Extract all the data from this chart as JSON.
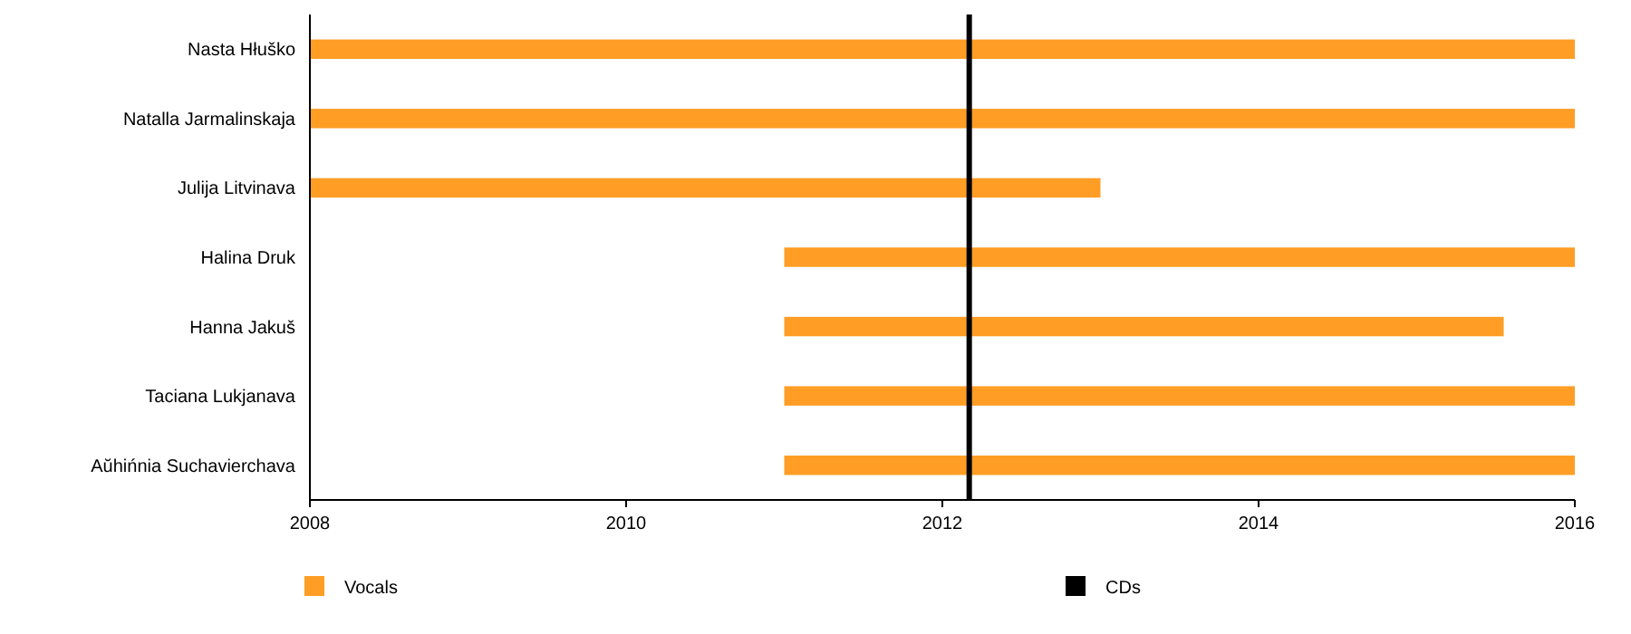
{
  "chart_data": {
    "type": "bar",
    "orientation": "horizontal",
    "categories": [
      "Nasta Hłuško",
      "Natalla Jarmalinskaja",
      "Julija Litvinava",
      "Halina Druk",
      "Hanna Jakuš",
      "Taciana Lukjanava",
      "Aŭhińnia Suchavierchava"
    ],
    "series": [
      {
        "name": "Vocals",
        "color": "#ff9d25",
        "base": [
          2008,
          2008,
          2008,
          2011,
          2011,
          2011,
          2011
        ],
        "values": [
          8,
          8,
          5,
          5,
          4.55,
          5,
          5
        ]
      }
    ],
    "xlim": [
      2008,
      2016
    ],
    "xticks": [
      2008,
      2010,
      2012,
      2014,
      2016
    ],
    "ref_lines": [
      {
        "axis": "x",
        "value": 2012.17,
        "label": "CDs",
        "color": "#000000"
      }
    ],
    "legend": "bottom",
    "grid": false
  }
}
